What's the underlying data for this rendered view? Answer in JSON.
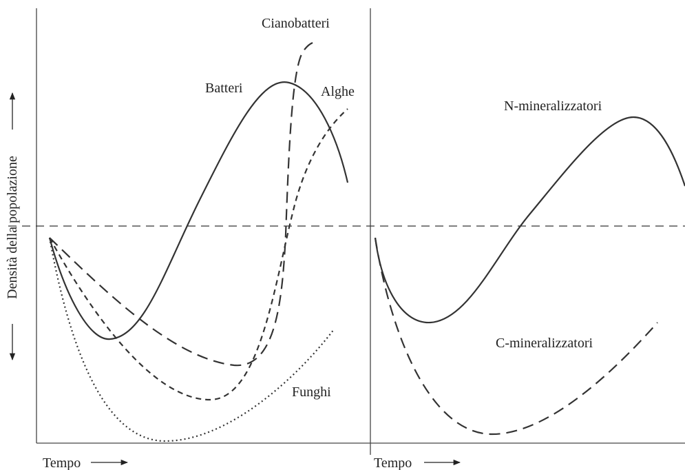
{
  "y_label": "Densità della popolazione",
  "left_panel": {
    "x_label": "Tempo",
    "curves": [
      "Cianobatteri",
      "Batteri",
      "Alghe",
      "Funghi"
    ]
  },
  "right_panel": {
    "x_label": "Tempo",
    "curves": [
      "N-mineralizzatori",
      "C-mineralizzatori"
    ]
  }
}
